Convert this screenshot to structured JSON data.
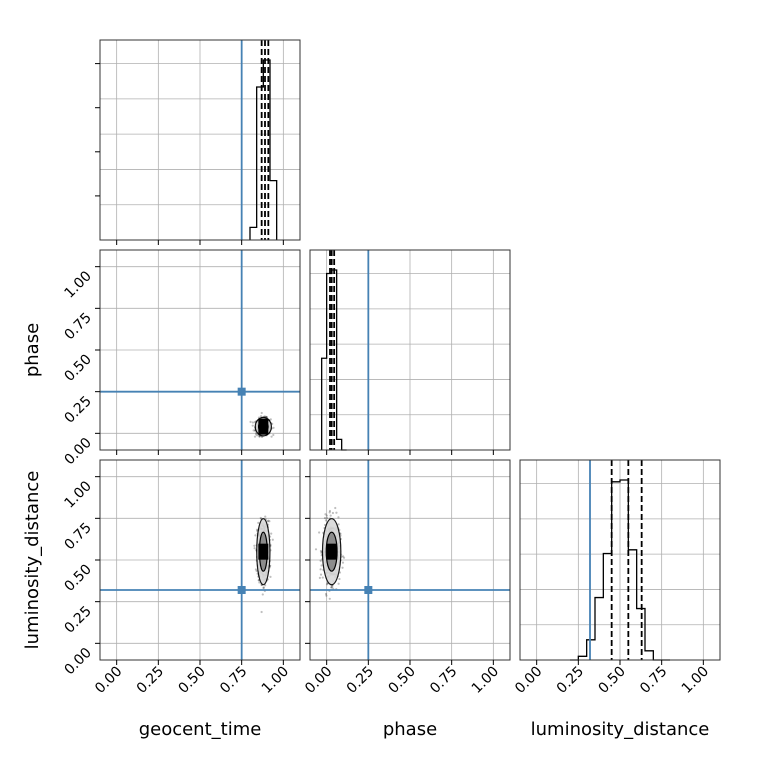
{
  "chart_data": {
    "type": "corner",
    "parameters": [
      "geocent_time",
      "phase",
      "luminosity_distance"
    ],
    "axis_label_geocent_time": "geocent_time",
    "axis_label_phase": "phase",
    "axis_label_luminosity_distance": "luminosity_distance",
    "tick_labels": [
      "0.00",
      "0.25",
      "0.50",
      "0.75",
      "1.00"
    ],
    "ticks": [
      0,
      0.25,
      0.5,
      0.75,
      1.0
    ],
    "xlim": [
      -0.1,
      1.1
    ],
    "ylim": [
      -0.1,
      1.1
    ],
    "injection_color": "#4682b4",
    "hist_color": "#000000",
    "grid": true,
    "injection": {
      "geocent_time": 0.75,
      "phase": 0.25,
      "luminosity_distance": 0.32
    },
    "quantiles": {
      "geocent_time": [
        0.87,
        0.89,
        0.91
      ],
      "phase": [
        0.02,
        0.03,
        0.045
      ],
      "luminosity_distance": [
        0.45,
        0.55,
        0.63
      ]
    },
    "histograms": {
      "geocent_time": {
        "edges": [
          0.8,
          0.84,
          0.88,
          0.92,
          0.96
        ],
        "values": [
          0.07,
          0.85,
          1.0,
          0.33
        ]
      },
      "phase": {
        "edges": [
          -0.03,
          0.0,
          0.03,
          0.06,
          0.09,
          0.12
        ],
        "values": [
          0.52,
          1.0,
          1.02,
          0.06,
          0.0
        ]
      },
      "luminosity_distance": {
        "edges": [
          0.2,
          0.25,
          0.3,
          0.35,
          0.4,
          0.45,
          0.5,
          0.55,
          0.6,
          0.65,
          0.7,
          0.75,
          0.8
        ],
        "values": [
          0.0,
          0.02,
          0.11,
          0.34,
          0.58,
          0.97,
          0.98,
          0.6,
          0.28,
          0.05,
          0.0,
          0.0
        ]
      }
    },
    "scatter": {
      "geocent_time_vs_phase": {
        "center": [
          0.88,
          0.04
        ],
        "spread": [
          0.022,
          0.025
        ]
      },
      "geocent_time_vs_luminosity_distance": {
        "center": [
          0.88,
          0.55
        ],
        "spread": [
          0.018,
          0.09
        ]
      },
      "phase_vs_luminosity_distance": {
        "center": [
          0.03,
          0.55
        ],
        "spread": [
          0.025,
          0.09
        ]
      }
    }
  }
}
